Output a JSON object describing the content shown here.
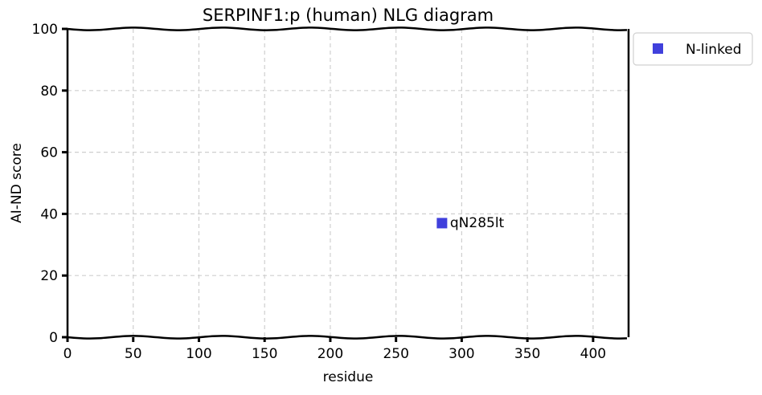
{
  "chart_data": {
    "type": "scatter",
    "title": "SERPINF1:p (human) NLG diagram",
    "xlabel": "residue",
    "ylabel": "AI-ND score",
    "xlim": [
      0,
      427
    ],
    "ylim": [
      0,
      100
    ],
    "xticks": [
      0,
      50,
      100,
      150,
      200,
      250,
      300,
      350,
      400
    ],
    "yticks": [
      0,
      20,
      40,
      60,
      80,
      100
    ],
    "grid": true,
    "legend_position": "outside-top-right",
    "series": [
      {
        "name": "N-linked",
        "color": "#1f1fd6",
        "marker": "square",
        "points": [
          {
            "x": 285,
            "y": 37,
            "label": "qN285lt"
          }
        ]
      }
    ]
  }
}
